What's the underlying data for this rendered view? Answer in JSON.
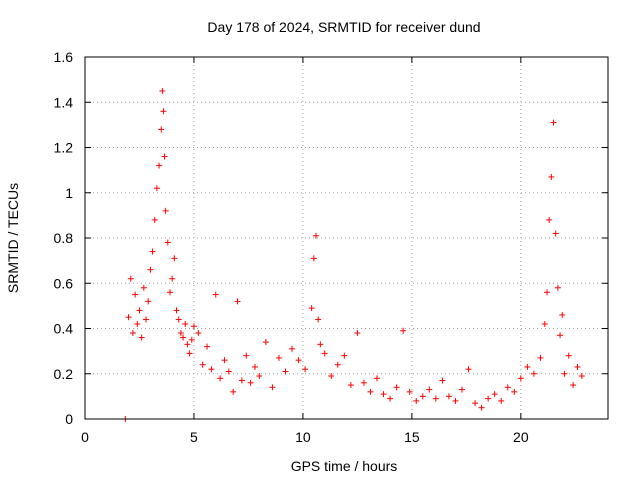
{
  "chart_data": {
    "type": "scatter",
    "title": "Day 178 of 2024, SRMTID for receiver dund",
    "xlabel": "GPS time / hours",
    "ylabel": "SRMTID / TECUs",
    "xlim": [
      0,
      24
    ],
    "ylim": [
      0,
      1.6
    ],
    "xticks": [
      0,
      5,
      10,
      15,
      20
    ],
    "xtick_labels": [
      "0",
      "5",
      "10",
      "15",
      "20"
    ],
    "yticks": [
      0,
      0.2,
      0.4,
      0.6,
      0.8,
      1.0,
      1.2,
      1.4,
      1.6
    ],
    "ytick_labels": [
      "0",
      "0.2",
      "0.4",
      "0.6",
      "0.8",
      "1",
      "1.2",
      "1.4",
      "1.6"
    ],
    "grid": true,
    "marker": "+",
    "color": "#ff0000",
    "series": [
      {
        "name": "SRMTID",
        "x": [
          2.0,
          2.1,
          2.2,
          2.3,
          2.4,
          2.5,
          2.6,
          2.7,
          2.8,
          2.9,
          3.0,
          3.1,
          3.2,
          3.3,
          3.4,
          3.5,
          3.55,
          3.6,
          3.65,
          3.7,
          3.8,
          3.9,
          4.0,
          4.1,
          4.2,
          4.3,
          4.4,
          4.5,
          4.6,
          4.7,
          4.8,
          4.9,
          5.0,
          5.2,
          5.4,
          5.6,
          5.8,
          6.0,
          6.2,
          6.4,
          6.6,
          6.8,
          7.0,
          7.2,
          7.4,
          7.6,
          7.8,
          8.0,
          8.3,
          8.6,
          8.9,
          9.2,
          9.5,
          9.8,
          10.1,
          10.4,
          10.5,
          10.6,
          10.7,
          10.8,
          11.0,
          11.3,
          11.6,
          11.9,
          12.2,
          12.5,
          12.8,
          13.1,
          13.4,
          13.7,
          14.0,
          14.3,
          14.6,
          14.9,
          15.2,
          15.5,
          15.8,
          16.1,
          16.4,
          16.7,
          17.0,
          17.3,
          17.6,
          17.9,
          18.2,
          18.5,
          18.8,
          19.1,
          19.4,
          19.7,
          20.0,
          20.3,
          20.6,
          20.9,
          21.1,
          21.2,
          21.3,
          21.4,
          21.5,
          21.6,
          21.7,
          21.8,
          21.9,
          22.0,
          22.2,
          22.4,
          22.6,
          22.8,
          1.85
        ],
        "y": [
          0.45,
          0.62,
          0.38,
          0.55,
          0.42,
          0.48,
          0.36,
          0.58,
          0.44,
          0.52,
          0.66,
          0.74,
          0.88,
          1.02,
          1.12,
          1.28,
          1.45,
          1.36,
          1.16,
          0.92,
          0.78,
          0.56,
          0.62,
          0.71,
          0.48,
          0.44,
          0.38,
          0.36,
          0.42,
          0.33,
          0.29,
          0.35,
          0.41,
          0.38,
          0.24,
          0.32,
          0.22,
          0.55,
          0.18,
          0.26,
          0.21,
          0.12,
          0.52,
          0.17,
          0.28,
          0.16,
          0.23,
          0.19,
          0.34,
          0.14,
          0.27,
          0.21,
          0.31,
          0.26,
          0.22,
          0.49,
          0.71,
          0.81,
          0.44,
          0.33,
          0.29,
          0.19,
          0.24,
          0.28,
          0.15,
          0.38,
          0.16,
          0.12,
          0.18,
          0.11,
          0.09,
          0.14,
          0.39,
          0.12,
          0.08,
          0.1,
          0.13,
          0.09,
          0.17,
          0.1,
          0.08,
          0.13,
          0.22,
          0.07,
          0.05,
          0.09,
          0.11,
          0.08,
          0.14,
          0.12,
          0.18,
          0.23,
          0.2,
          0.27,
          0.42,
          0.56,
          0.88,
          1.07,
          1.31,
          0.82,
          0.58,
          0.37,
          0.46,
          0.2,
          0.28,
          0.15,
          0.23,
          0.19,
          0.0
        ]
      }
    ]
  }
}
